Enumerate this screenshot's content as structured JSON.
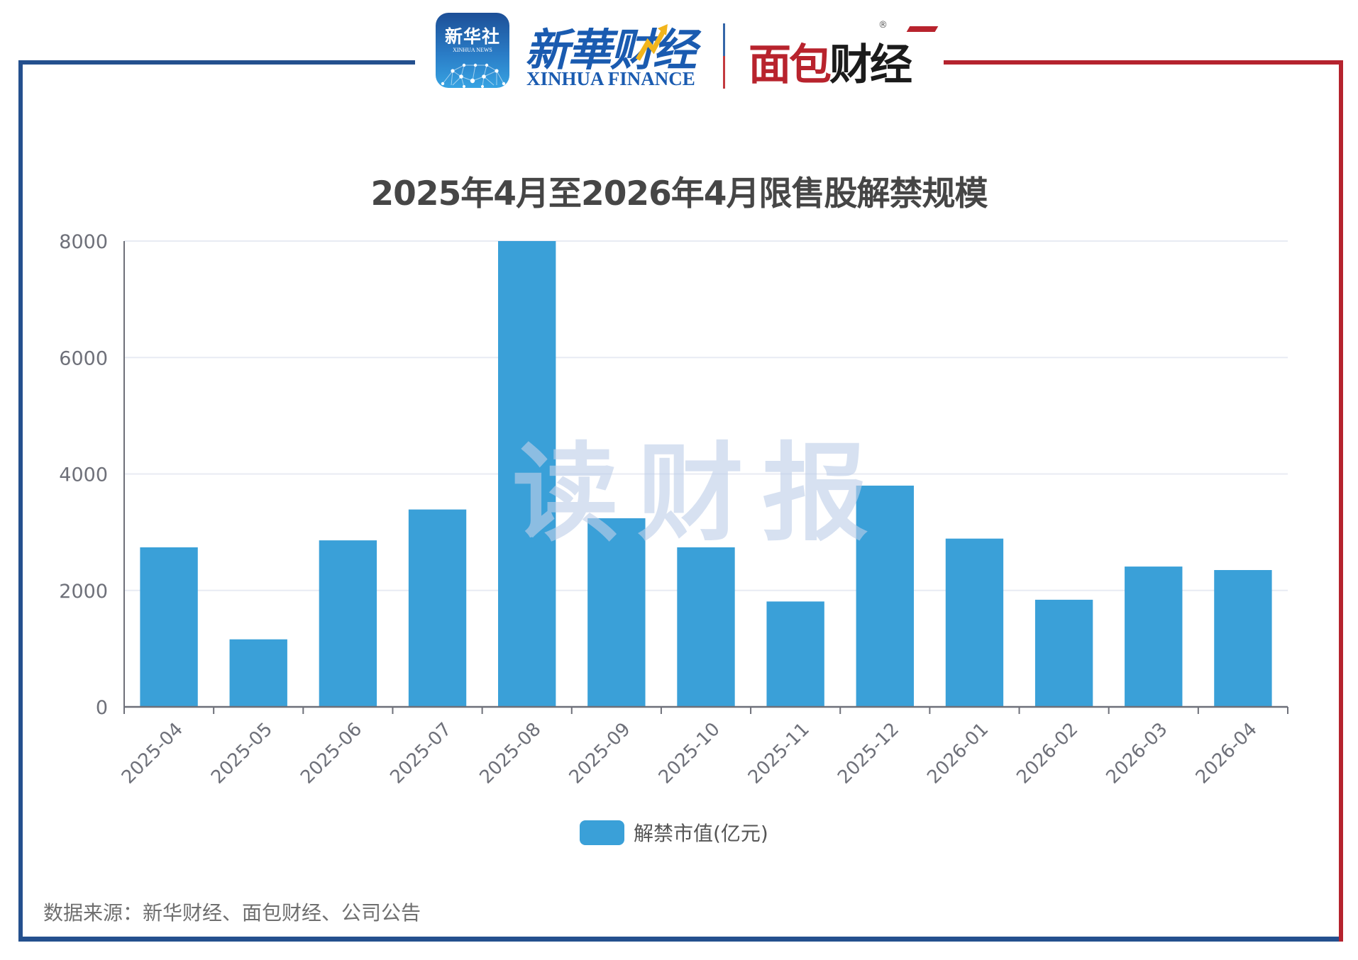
{
  "colors": {
    "frame_blue": "#24508e",
    "frame_red": "#b5232e",
    "bar": "#3aa0d8",
    "gridline": "#e8ebf3",
    "axis": "#6e7079",
    "title": "#464646"
  },
  "header": {
    "xinhua_app": {
      "cn": "新华社",
      "en": "XINHUA NEWS"
    },
    "xinhua_finance": {
      "cn": "新華财经",
      "en": "XINHUA FINANCE"
    },
    "mianbao": {
      "cn_red": "面包",
      "cn_black": "财经",
      "registered": "®"
    }
  },
  "watermark": "读财报",
  "source": "数据来源：新华财经、面包财经、公司公告",
  "chart_data": {
    "type": "bar",
    "title": "2025年4月至2026年4月限售股解禁规模",
    "xlabel": "",
    "ylabel": "",
    "categories": [
      "2025-04",
      "2025-05",
      "2025-06",
      "2025-07",
      "2025-08",
      "2025-09",
      "2025-10",
      "2025-11",
      "2025-12",
      "2026-01",
      "2026-02",
      "2026-03",
      "2026-04"
    ],
    "series": [
      {
        "name": "解禁市值(亿元)",
        "values": [
          2740,
          1160,
          2860,
          3390,
          8000,
          3240,
          2740,
          1810,
          3800,
          2890,
          1840,
          2410,
          2350
        ]
      }
    ],
    "ylim": [
      0,
      8000
    ],
    "yticks": [
      0,
      2000,
      4000,
      6000,
      8000
    ],
    "grid": true,
    "legend_position": "bottom-center",
    "xtick_rotation": -45,
    "notes": "2025-08 bar reaches the top of the axis (8000); exact value may exceed axis max."
  }
}
